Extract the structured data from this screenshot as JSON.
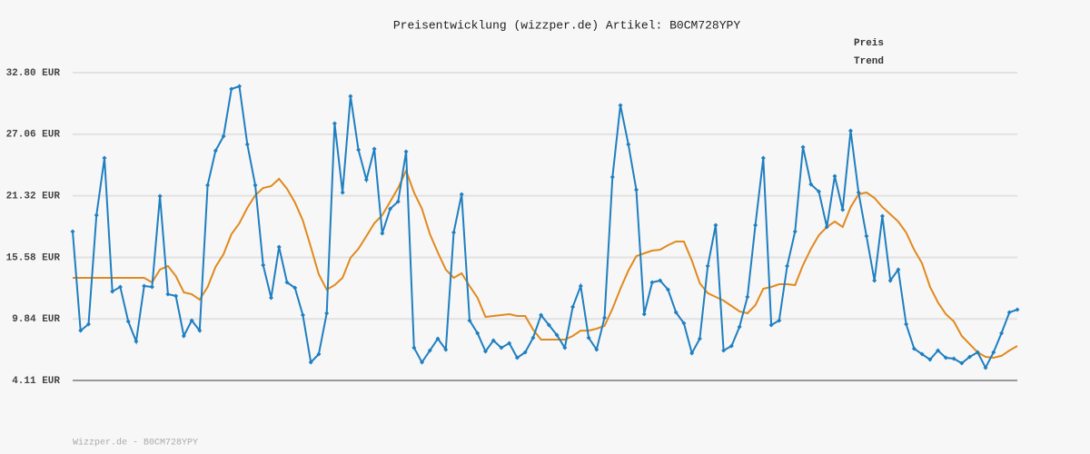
{
  "chart_data": {
    "type": "line",
    "title": "Preisentwicklung (wizzper.de) Artikel: B0CM728YPY",
    "footer": "Wizzper.de - B0CM728YPY",
    "legend": "top-right",
    "grid": true,
    "ylim": [
      4.11,
      32.8
    ],
    "yticks": [
      {
        "value": 4.11,
        "label": "4.11 EUR"
      },
      {
        "value": 9.84,
        "label": "9.84 EUR"
      },
      {
        "value": 15.58,
        "label": "15.58 EUR"
      },
      {
        "value": 21.32,
        "label": "21.32 EUR"
      },
      {
        "value": 27.06,
        "label": "27.06 EUR"
      },
      {
        "value": 32.8,
        "label": "32.80 EUR"
      }
    ],
    "series": [
      {
        "name": "Preis",
        "color": "#1f7fc0",
        "markers": true,
        "values": [
          17.99,
          8.76,
          9.36,
          19.51,
          24.84,
          12.4,
          12.83,
          9.61,
          7.75,
          12.91,
          12.83,
          21.29,
          12.15,
          11.98,
          8.26,
          9.7,
          8.76,
          22.31,
          25.52,
          26.88,
          31.28,
          31.53,
          26.11,
          22.31,
          14.86,
          11.81,
          16.55,
          13.25,
          12.74,
          10.2,
          5.8,
          6.56,
          10.37,
          28.06,
          21.63,
          30.6,
          25.61,
          22.81,
          25.69,
          17.82,
          20.11,
          20.78,
          25.44,
          7.16,
          5.8,
          6.9,
          8.0,
          6.99,
          17.9,
          21.46,
          9.7,
          8.51,
          6.82,
          7.83,
          7.16,
          7.58,
          6.23,
          6.73,
          8.09,
          10.2,
          9.27,
          8.34,
          7.16,
          10.97,
          12.91,
          8.09,
          6.99,
          9.95,
          23.07,
          29.75,
          26.11,
          21.88,
          10.29,
          13.25,
          13.42,
          12.57,
          10.46,
          9.44,
          6.65,
          8.0,
          14.77,
          18.58,
          6.9,
          7.33,
          9.1,
          11.9,
          18.58,
          24.84,
          9.27,
          9.7,
          14.77,
          17.99,
          25.86,
          22.39,
          21.71,
          18.41,
          23.15,
          20.02,
          27.38,
          21.63,
          17.57,
          13.42,
          19.43,
          13.42,
          14.44,
          9.36,
          7.07,
          6.56,
          6.06,
          6.9,
          6.23,
          6.14,
          5.72,
          6.31,
          6.73,
          5.3,
          6.73,
          8.51,
          10.46,
          10.71
        ]
      },
      {
        "name": "Trend",
        "color": "#e08a1e",
        "markers": false,
        "values": [
          13.67,
          13.67,
          13.67,
          13.67,
          13.67,
          13.67,
          13.67,
          13.67,
          13.67,
          13.67,
          13.25,
          14.44,
          14.77,
          13.84,
          12.32,
          12.15,
          11.64,
          12.83,
          14.69,
          15.88,
          17.74,
          18.76,
          20.2,
          21.37,
          22.05,
          22.22,
          22.9,
          21.97,
          20.7,
          19.01,
          16.55,
          14.01,
          12.57,
          13.0,
          13.67,
          15.54,
          16.38,
          17.57,
          18.76,
          19.51,
          20.78,
          22.05,
          23.66,
          21.63,
          20.11,
          17.74,
          16.04,
          14.44,
          13.67,
          14.1,
          12.91,
          11.81,
          10.03,
          10.12,
          10.2,
          10.29,
          10.12,
          10.12,
          8.85,
          7.92,
          7.92,
          7.92,
          7.92,
          8.26,
          8.76,
          8.76,
          8.93,
          9.19,
          10.8,
          12.66,
          14.35,
          15.7,
          15.96,
          16.21,
          16.3,
          16.72,
          17.06,
          17.06,
          15.28,
          13.17,
          12.24,
          11.9,
          11.56,
          11.05,
          10.54,
          10.37,
          11.13,
          12.66,
          12.83,
          13.08,
          13.08,
          13.0,
          14.86,
          16.38,
          17.65,
          18.41,
          18.92,
          18.41,
          20.27,
          21.46,
          21.63,
          21.12,
          20.27,
          19.6,
          18.92,
          17.9,
          16.3,
          15.03,
          12.83,
          11.39,
          10.29,
          9.61,
          8.26,
          7.49,
          6.73,
          6.31,
          6.23,
          6.4,
          6.9,
          7.33
        ]
      }
    ]
  }
}
